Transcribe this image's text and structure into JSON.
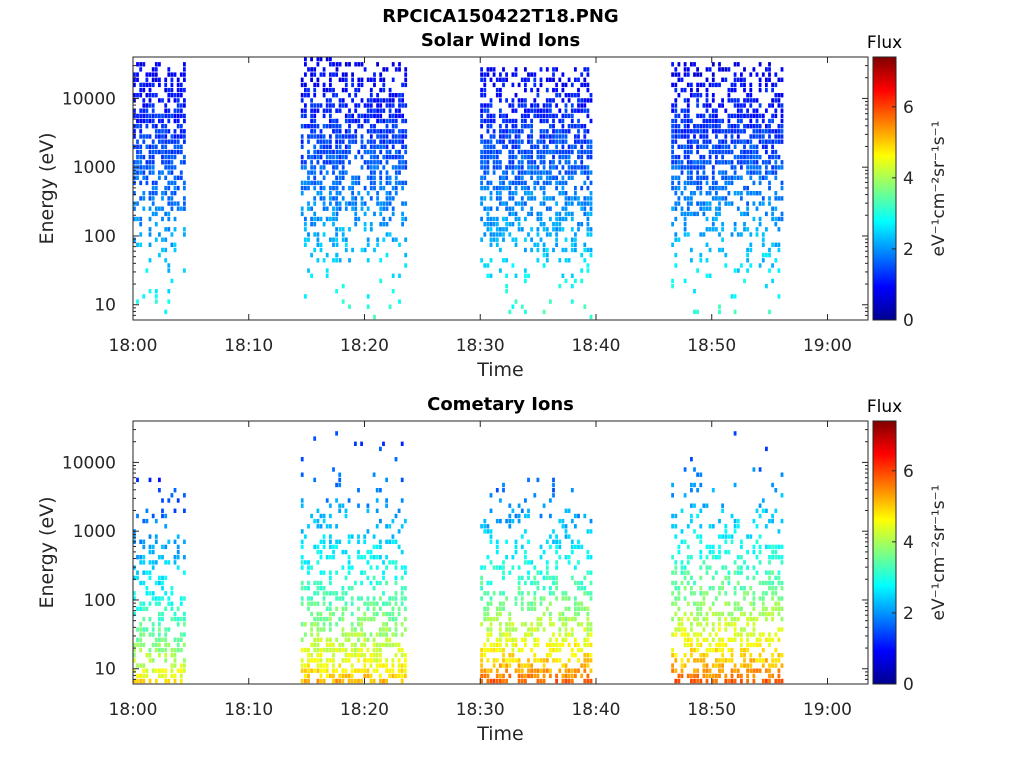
{
  "figure": {
    "title": "RPCICA150422T18.PNG"
  },
  "chart_data": [
    {
      "type": "heatmap",
      "title": "Solar Wind Ions",
      "xlabel": "Time",
      "ylabel": "Energy (eV)",
      "x_ticks": [
        "18:00",
        "18:10",
        "18:20",
        "18:30",
        "18:40",
        "18:50",
        "19:00"
      ],
      "y_ticks": [
        "10",
        "100",
        "1000",
        "10000"
      ],
      "y_scale": "log",
      "y_range_eV": [
        6,
        40000
      ],
      "colorbar": {
        "title": "Flux",
        "label": "eV⁻¹cm⁻²sr⁻¹s⁻¹",
        "range": [
          0,
          7.4
        ],
        "ticks": [
          "0",
          "2",
          "4",
          "6"
        ],
        "colormap": "jet"
      },
      "bursts": [
        {
          "start": "18:00",
          "end": "18:04.5",
          "emin_eV": 6,
          "emax_eV": 30000,
          "peak_eV": 2500,
          "flux_low": 3.2,
          "flux_high": 0.8
        },
        {
          "start": "18:14.5",
          "end": "18:17.5",
          "emin_eV": 6,
          "emax_eV": 35000,
          "peak_eV": 2000,
          "flux_low": 3.3,
          "flux_high": 0.8
        },
        {
          "start": "18:17.5",
          "end": "18:23.5",
          "emin_eV": 6,
          "emax_eV": 30000,
          "peak_eV": 2500,
          "flux_low": 3.3,
          "flux_high": 0.8
        },
        {
          "start": "18:30",
          "end": "18:39.5",
          "emin_eV": 6,
          "emax_eV": 25000,
          "peak_eV": 1500,
          "flux_low": 3.3,
          "flux_high": 0.9
        },
        {
          "start": "18:46.5",
          "end": "18:56",
          "emin_eV": 6,
          "emax_eV": 30000,
          "peak_eV": 2000,
          "flux_low": 3.3,
          "flux_high": 0.8
        }
      ]
    },
    {
      "type": "heatmap",
      "title": "Cometary Ions",
      "xlabel": "Time",
      "ylabel": "Energy (eV)",
      "x_ticks": [
        "18:00",
        "18:10",
        "18:20",
        "18:30",
        "18:40",
        "18:50",
        "19:00"
      ],
      "y_ticks": [
        "10",
        "100",
        "1000",
        "10000"
      ],
      "y_scale": "log",
      "y_range_eV": [
        6,
        40000
      ],
      "colorbar": {
        "title": "Flux",
        "label": "eV⁻¹cm⁻²sr⁻¹s⁻¹",
        "range": [
          0,
          7.4
        ],
        "ticks": [
          "0",
          "2",
          "4",
          "6"
        ],
        "colormap": "jet"
      },
      "bursts": [
        {
          "start": "18:00",
          "end": "18:04.5",
          "emin_eV": 6,
          "emax_eV": 6000,
          "peak_eV": 8,
          "flux_low": 4.8,
          "flux_high": 1.2
        },
        {
          "start": "18:14.5",
          "end": "18:23.5",
          "emin_eV": 6,
          "emax_eV": 25000,
          "peak_eV": 9,
          "flux_low": 5.2,
          "flux_high": 1.2
        },
        {
          "start": "18:30",
          "end": "18:39.5",
          "emin_eV": 6,
          "emax_eV": 6000,
          "peak_eV": 8,
          "flux_low": 5.8,
          "flux_high": 1.5
        },
        {
          "start": "18:46.5",
          "end": "18:56",
          "emin_eV": 6,
          "emax_eV": 25000,
          "peak_eV": 8,
          "flux_low": 5.8,
          "flux_high": 1.3
        }
      ]
    }
  ]
}
